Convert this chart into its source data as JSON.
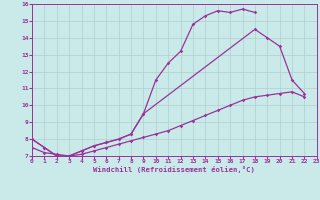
{
  "xlabel": "Windchill (Refroidissement éolien,°C)",
  "bg_color": "#caeaea",
  "line_color": "#993399",
  "grid_color": "#b0d0d0",
  "ylim": [
    7,
    16
  ],
  "xlim": [
    0,
    23
  ],
  "yticks": [
    7,
    8,
    9,
    10,
    11,
    12,
    13,
    14,
    15,
    16
  ],
  "xticks": [
    0,
    1,
    2,
    3,
    4,
    5,
    6,
    7,
    8,
    9,
    10,
    11,
    12,
    13,
    14,
    15,
    16,
    17,
    18,
    19,
    20,
    21,
    22,
    23
  ],
  "line1_x": [
    0,
    1,
    2,
    3,
    4,
    5,
    6,
    7,
    8,
    9,
    10,
    11,
    12,
    13,
    14,
    15,
    16,
    17,
    18
  ],
  "line1_y": [
    8.0,
    7.5,
    7.0,
    7.0,
    7.3,
    7.6,
    7.8,
    8.0,
    8.3,
    9.5,
    11.5,
    12.5,
    13.2,
    14.8,
    15.3,
    15.6,
    15.5,
    15.7,
    15.5
  ],
  "line2_x": [
    0,
    1,
    2,
    3,
    4,
    5,
    6,
    7,
    8,
    9,
    18,
    19,
    20,
    21,
    22
  ],
  "line2_y": [
    8.0,
    7.5,
    7.0,
    7.0,
    7.3,
    7.6,
    7.8,
    8.0,
    8.3,
    9.5,
    14.5,
    14.0,
    13.5,
    11.5,
    10.7
  ],
  "line3_x": [
    0,
    1,
    2,
    3,
    4,
    5,
    6,
    7,
    8,
    9,
    10,
    11,
    12,
    13,
    14,
    15,
    16,
    17,
    18,
    19,
    20,
    21,
    22
  ],
  "line3_y": [
    7.5,
    7.2,
    7.1,
    7.0,
    7.1,
    7.3,
    7.5,
    7.7,
    7.9,
    8.1,
    8.3,
    8.5,
    8.8,
    9.1,
    9.4,
    9.7,
    10.0,
    10.3,
    10.5,
    10.6,
    10.7,
    10.8,
    10.5
  ]
}
